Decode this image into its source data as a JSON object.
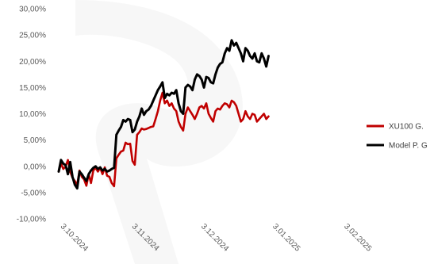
{
  "chart_data": {
    "type": "line",
    "title": "",
    "xlabel": "",
    "ylabel": "",
    "ylim": [
      -10,
      30
    ],
    "ytick_step": 5,
    "y_tick_labels": [
      "-10,00%",
      "-5,00%",
      "0,00%",
      "5,00%",
      "10,00%",
      "15,00%",
      "20,00%",
      "25,00%",
      "30,00%"
    ],
    "x_range": [
      "2024-10-01",
      "2025-02-06"
    ],
    "x_ticks": [
      {
        "date": "2024-10-03",
        "label": "3.10.2024"
      },
      {
        "date": "2024-11-03",
        "label": "3.11.2024"
      },
      {
        "date": "2024-12-03",
        "label": "3.12.2024"
      },
      {
        "date": "2025-01-03",
        "label": "3.01.2025"
      },
      {
        "date": "2025-02-03",
        "label": "3.02.2025"
      }
    ],
    "grid": false,
    "legend": "right",
    "series": [
      {
        "name": "XU100 G.",
        "color": "#C00000",
        "points": [
          [
            "2024-10-01",
            -1.0
          ],
          [
            "2024-10-02",
            0.5
          ],
          [
            "2024-10-03",
            -0.5
          ],
          [
            "2024-10-04",
            0.0
          ],
          [
            "2024-10-05",
            1.2
          ],
          [
            "2024-10-06",
            -1.0
          ],
          [
            "2024-10-07",
            -2.2
          ],
          [
            "2024-10-08",
            -2.8
          ],
          [
            "2024-10-09",
            -3.5
          ],
          [
            "2024-10-10",
            -0.8
          ],
          [
            "2024-10-11",
            -2.0
          ],
          [
            "2024-10-12",
            -2.5
          ],
          [
            "2024-10-13",
            -3.7
          ],
          [
            "2024-10-14",
            -1.5
          ],
          [
            "2024-10-15",
            -3.2
          ],
          [
            "2024-10-16",
            -0.8
          ],
          [
            "2024-10-17",
            -0.3
          ],
          [
            "2024-10-18",
            -1.0
          ],
          [
            "2024-10-19",
            -0.3
          ],
          [
            "2024-10-20",
            -1.5
          ],
          [
            "2024-10-21",
            -0.2
          ],
          [
            "2024-10-22",
            -1.8
          ],
          [
            "2024-10-23",
            -2.0
          ],
          [
            "2024-10-24",
            -3.2
          ],
          [
            "2024-10-25",
            -3.8
          ],
          [
            "2024-10-26",
            1.5
          ],
          [
            "2024-10-27",
            2.2
          ],
          [
            "2024-10-28",
            2.8
          ],
          [
            "2024-10-29",
            3.0
          ],
          [
            "2024-10-30",
            4.5
          ],
          [
            "2024-10-31",
            4.2
          ],
          [
            "2024-11-01",
            4.3
          ],
          [
            "2024-11-02",
            1.0
          ],
          [
            "2024-11-03",
            0.3
          ],
          [
            "2024-11-04",
            6.0
          ],
          [
            "2024-11-05",
            6.5
          ],
          [
            "2024-11-06",
            7.2
          ],
          [
            "2024-11-07",
            7.0
          ],
          [
            "2024-11-08",
            7.1
          ],
          [
            "2024-11-09",
            7.3
          ],
          [
            "2024-11-10",
            7.5
          ],
          [
            "2024-11-11",
            7.6
          ],
          [
            "2024-11-12",
            9.0
          ],
          [
            "2024-11-13",
            10.5
          ],
          [
            "2024-11-14",
            12.5
          ],
          [
            "2024-11-15",
            14.0
          ],
          [
            "2024-11-16",
            12.0
          ],
          [
            "2024-11-17",
            12.5
          ],
          [
            "2024-11-18",
            11.5
          ],
          [
            "2024-11-19",
            12.0
          ],
          [
            "2024-11-20",
            11.0
          ],
          [
            "2024-11-21",
            10.5
          ],
          [
            "2024-11-22",
            8.5
          ],
          [
            "2024-11-23",
            7.5
          ],
          [
            "2024-11-24",
            6.8
          ],
          [
            "2024-11-25",
            10.0
          ],
          [
            "2024-11-26",
            11.2
          ],
          [
            "2024-11-27",
            10.5
          ],
          [
            "2024-11-28",
            9.8
          ],
          [
            "2024-11-29",
            9.0
          ],
          [
            "2024-11-30",
            10.0
          ],
          [
            "2024-12-01",
            11.2
          ],
          [
            "2024-12-02",
            11.5
          ],
          [
            "2024-12-03",
            11.0
          ],
          [
            "2024-12-04",
            12.0
          ],
          [
            "2024-12-05",
            10.0
          ],
          [
            "2024-12-06",
            9.2
          ],
          [
            "2024-12-07",
            8.5
          ],
          [
            "2024-12-08",
            10.5
          ],
          [
            "2024-12-09",
            11.0
          ],
          [
            "2024-12-10",
            10.8
          ],
          [
            "2024-12-11",
            11.5
          ],
          [
            "2024-12-12",
            12.0
          ],
          [
            "2024-12-13",
            11.8
          ],
          [
            "2024-12-14",
            11.2
          ],
          [
            "2024-12-15",
            12.5
          ],
          [
            "2024-12-16",
            12.2
          ],
          [
            "2024-12-17",
            11.5
          ],
          [
            "2024-12-18",
            10.0
          ],
          [
            "2024-12-19",
            8.5
          ],
          [
            "2024-12-20",
            9.0
          ],
          [
            "2024-12-21",
            10.5
          ],
          [
            "2024-12-22",
            9.5
          ],
          [
            "2024-12-23",
            9.0
          ],
          [
            "2024-12-24",
            10.0
          ],
          [
            "2024-12-25",
            9.8
          ],
          [
            "2024-12-26",
            8.5
          ],
          [
            "2024-12-27",
            9.0
          ],
          [
            "2024-12-28",
            9.5
          ],
          [
            "2024-12-29",
            10.0
          ],
          [
            "2024-12-30",
            9.0
          ],
          [
            "2024-12-31",
            9.5
          ]
        ]
      },
      {
        "name": "Model P. G",
        "color": "#000000",
        "points": [
          [
            "2024-10-01",
            -1.0
          ],
          [
            "2024-10-02",
            1.2
          ],
          [
            "2024-10-03",
            0.5
          ],
          [
            "2024-10-04",
            0.2
          ],
          [
            "2024-10-05",
            -1.5
          ],
          [
            "2024-10-06",
            0.8
          ],
          [
            "2024-10-07",
            -2.0
          ],
          [
            "2024-10-08",
            -3.5
          ],
          [
            "2024-10-09",
            -4.2
          ],
          [
            "2024-10-10",
            -1.0
          ],
          [
            "2024-10-11",
            -1.5
          ],
          [
            "2024-10-12",
            -2.2
          ],
          [
            "2024-10-13",
            -2.8
          ],
          [
            "2024-10-14",
            -1.5
          ],
          [
            "2024-10-15",
            -0.8
          ],
          [
            "2024-10-16",
            -0.3
          ],
          [
            "2024-10-17",
            0.0
          ],
          [
            "2024-10-18",
            -0.5
          ],
          [
            "2024-10-19",
            -0.2
          ],
          [
            "2024-10-20",
            -0.8
          ],
          [
            "2024-10-21",
            -0.5
          ],
          [
            "2024-10-22",
            -1.0
          ],
          [
            "2024-10-23",
            -0.8
          ],
          [
            "2024-10-24",
            -0.5
          ],
          [
            "2024-10-25",
            -0.3
          ],
          [
            "2024-10-26",
            6.0
          ],
          [
            "2024-10-27",
            6.8
          ],
          [
            "2024-10-28",
            7.5
          ],
          [
            "2024-10-29",
            8.8
          ],
          [
            "2024-10-30",
            8.5
          ],
          [
            "2024-10-31",
            9.0
          ],
          [
            "2024-11-01",
            8.8
          ],
          [
            "2024-11-02",
            6.5
          ],
          [
            "2024-11-03",
            7.0
          ],
          [
            "2024-11-04",
            8.5
          ],
          [
            "2024-11-05",
            9.5
          ],
          [
            "2024-11-06",
            11.0
          ],
          [
            "2024-11-07",
            9.8
          ],
          [
            "2024-11-08",
            10.5
          ],
          [
            "2024-11-09",
            10.8
          ],
          [
            "2024-11-10",
            11.5
          ],
          [
            "2024-11-11",
            12.5
          ],
          [
            "2024-11-12",
            13.5
          ],
          [
            "2024-11-13",
            14.5
          ],
          [
            "2024-11-14",
            15.2
          ],
          [
            "2024-11-15",
            16.0
          ],
          [
            "2024-11-16",
            13.0
          ],
          [
            "2024-11-17",
            13.8
          ],
          [
            "2024-11-18",
            13.5
          ],
          [
            "2024-11-19",
            14.0
          ],
          [
            "2024-11-20",
            13.8
          ],
          [
            "2024-11-21",
            14.5
          ],
          [
            "2024-11-22",
            12.0
          ],
          [
            "2024-11-23",
            10.5
          ],
          [
            "2024-11-24",
            10.0
          ],
          [
            "2024-11-25",
            15.0
          ],
          [
            "2024-11-26",
            15.5
          ],
          [
            "2024-11-27",
            15.2
          ],
          [
            "2024-11-28",
            14.5
          ],
          [
            "2024-11-29",
            16.5
          ],
          [
            "2024-11-30",
            17.5
          ],
          [
            "2024-12-01",
            17.2
          ],
          [
            "2024-12-02",
            16.5
          ],
          [
            "2024-12-03",
            15.0
          ],
          [
            "2024-12-04",
            17.0
          ],
          [
            "2024-12-05",
            16.8
          ],
          [
            "2024-12-06",
            16.0
          ],
          [
            "2024-12-07",
            15.8
          ],
          [
            "2024-12-08",
            17.5
          ],
          [
            "2024-12-09",
            18.8
          ],
          [
            "2024-12-10",
            19.5
          ],
          [
            "2024-12-11",
            19.8
          ],
          [
            "2024-12-12",
            21.5
          ],
          [
            "2024-12-13",
            22.5
          ],
          [
            "2024-12-14",
            22.0
          ],
          [
            "2024-12-15",
            24.0
          ],
          [
            "2024-12-16",
            23.0
          ],
          [
            "2024-12-17",
            23.5
          ],
          [
            "2024-12-18",
            22.5
          ],
          [
            "2024-12-19",
            21.5
          ],
          [
            "2024-12-20",
            20.0
          ],
          [
            "2024-12-21",
            22.5
          ],
          [
            "2024-12-22",
            22.0
          ],
          [
            "2024-12-23",
            21.0
          ],
          [
            "2024-12-24",
            20.5
          ],
          [
            "2024-12-25",
            21.5
          ],
          [
            "2024-12-26",
            20.0
          ],
          [
            "2024-12-27",
            19.8
          ],
          [
            "2024-12-28",
            21.5
          ],
          [
            "2024-12-29",
            20.5
          ],
          [
            "2024-12-30",
            19.0
          ],
          [
            "2024-12-31",
            21.0
          ]
        ]
      }
    ]
  }
}
